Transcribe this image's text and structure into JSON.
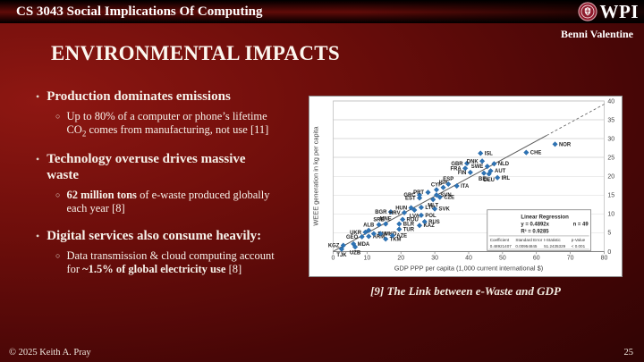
{
  "header": {
    "course_title": "CS 3043 Social Implications Of Computing",
    "logo": {
      "seal_icon": "wpi-seal",
      "text": "WPI"
    },
    "author": "Benni Valentine"
  },
  "slide": {
    "title": "ENVIRONMENTAL IMPACTS",
    "caption": "[9] The Link between e-Waste and GDP"
  },
  "bullets": [
    {
      "label": "Production dominates emissions",
      "subs": [
        {
          "segments": [
            {
              "text": "Up to 80% of a computer or phone’s lifetime CO"
            },
            {
              "text": "2",
              "sub": true
            },
            {
              "text": " comes from manufacturing, not use [11]"
            }
          ]
        }
      ]
    },
    {
      "label": "Technology overuse drives massive waste",
      "subs": [
        {
          "segments": [
            {
              "text": "62 million tons",
              "bold": true
            },
            {
              "text": " of e-waste produced globally each year [8]"
            }
          ]
        }
      ]
    },
    {
      "label": "Digital services also consume heavily:",
      "subs": [
        {
          "segments": [
            {
              "text": "Data transmission & cloud computing account for "
            },
            {
              "text": "~1.5% of global electricity use",
              "bold": true
            },
            {
              "text": " [8]"
            }
          ]
        }
      ]
    }
  ],
  "footer": {
    "copyright": "© 2025 Keith A. Pray",
    "page_number": "25"
  },
  "chart_data": {
    "type": "scatter",
    "xlabel": "GDP PPP per capita (1,000 current international $)",
    "ylabel": "WEEE generation in kg per capita",
    "xlim": [
      0,
      80
    ],
    "ylim": [
      0,
      40
    ],
    "xticks": [
      0,
      10,
      20,
      30,
      40,
      50,
      60,
      70,
      80
    ],
    "yticks": [
      0,
      5,
      10,
      15,
      20,
      25,
      30,
      35,
      40
    ],
    "ytick_side": "right",
    "grid": "horizontal",
    "marker_color": "#2E74B5",
    "trendline": {
      "slope": 0.4892,
      "solid_to_x": 63,
      "dashed_to_x": 80,
      "color": "#595959"
    },
    "regression_box": {
      "title": "Linear Regression",
      "equation": "y = 0.4892x",
      "n": "n = 49",
      "r_squared": "R² = 0.9285",
      "table": {
        "headers": [
          "Coefficient",
          "Standard Error",
          "t-Statistic",
          "p-Value"
        ],
        "values": [
          "0.48921407",
          "0.00954845",
          "51.2435329",
          "< 0.001"
        ]
      }
    },
    "points": [
      {
        "code": "TJK",
        "x": 2.5,
        "y": 0.6,
        "ls": "b"
      },
      {
        "code": "KGZ",
        "x": 3,
        "y": 1.6,
        "ls": "l"
      },
      {
        "code": "MDA",
        "x": 6,
        "y": 2.0,
        "ls": "r"
      },
      {
        "code": "UZB",
        "x": 6.5,
        "y": 1.2,
        "ls": "b"
      },
      {
        "code": "GEO",
        "x": 8.5,
        "y": 3.9,
        "ls": "l"
      },
      {
        "code": "UKR",
        "x": 9.5,
        "y": 5.1,
        "ls": "l"
      },
      {
        "code": "ARM",
        "x": 10.5,
        "y": 4.0,
        "ls": "r"
      },
      {
        "code": "ALB",
        "x": 10.5,
        "y": 5.6,
        "ls": "a"
      },
      {
        "code": "BIH",
        "x": 12,
        "y": 4.7,
        "ls": "r"
      },
      {
        "code": "MKD",
        "x": 14,
        "y": 4.7,
        "ls": "r"
      },
      {
        "code": "TKM",
        "x": 15.5,
        "y": 3.3,
        "ls": "r"
      },
      {
        "code": "AZE",
        "x": 17.5,
        "y": 4.2,
        "ls": "r"
      },
      {
        "code": "SRB",
        "x": 13.5,
        "y": 7.1,
        "ls": "a"
      },
      {
        "code": "MNE",
        "x": 15.5,
        "y": 7.3,
        "ls": "a"
      },
      {
        "code": "BGR",
        "x": 17,
        "y": 10.5,
        "ls": "l"
      },
      {
        "code": "HRV",
        "x": 21,
        "y": 10.3,
        "ls": "l"
      },
      {
        "code": "TUR",
        "x": 19.5,
        "y": 5.9,
        "ls": "r"
      },
      {
        "code": "BLR",
        "x": 19.5,
        "y": 7.3,
        "ls": "r"
      },
      {
        "code": "ROU",
        "x": 20.5,
        "y": 8.5,
        "ls": "r"
      },
      {
        "code": "KAZ",
        "x": 25.5,
        "y": 6.9,
        "ls": "r"
      },
      {
        "code": "RUS",
        "x": 27,
        "y": 7.9,
        "ls": "r"
      },
      {
        "code": "POL",
        "x": 26,
        "y": 9.6,
        "ls": "r"
      },
      {
        "code": "HUN",
        "x": 23,
        "y": 11.6,
        "ls": "l"
      },
      {
        "code": "LVA",
        "x": 24,
        "y": 11.0,
        "ls": "b"
      },
      {
        "code": "LTU",
        "x": 26,
        "y": 11.7,
        "ls": "r"
      },
      {
        "code": "SVK",
        "x": 30,
        "y": 11.3,
        "ls": "r"
      },
      {
        "code": "EST",
        "x": 25.5,
        "y": 14.2,
        "ls": "l"
      },
      {
        "code": "GRC",
        "x": 25.5,
        "y": 15.0,
        "ls": "l"
      },
      {
        "code": "PRT",
        "x": 28,
        "y": 15.7,
        "ls": "l"
      },
      {
        "code": "CYP",
        "x": 30.5,
        "y": 16.4,
        "ls": "a"
      },
      {
        "code": "MLT",
        "x": 29.5,
        "y": 13.8,
        "ls": "b"
      },
      {
        "code": "SVN",
        "x": 30.5,
        "y": 15.0,
        "ls": "r"
      },
      {
        "code": "CZE",
        "x": 31.5,
        "y": 14.4,
        "ls": "r"
      },
      {
        "code": "ISR",
        "x": 32.5,
        "y": 17.0,
        "ls": "a"
      },
      {
        "code": "ESP",
        "x": 34,
        "y": 17.9,
        "ls": "a"
      },
      {
        "code": "ITA",
        "x": 36.5,
        "y": 17.4,
        "ls": "r"
      },
      {
        "code": "FRA",
        "x": 39,
        "y": 22.1,
        "ls": "l"
      },
      {
        "code": "GBR",
        "x": 39.5,
        "y": 23.4,
        "ls": "l"
      },
      {
        "code": "FIN",
        "x": 40.5,
        "y": 21.0,
        "ls": "l"
      },
      {
        "code": "ISL",
        "x": 43.5,
        "y": 26.1,
        "ls": "r"
      },
      {
        "code": "DNK",
        "x": 44,
        "y": 24.0,
        "ls": "l"
      },
      {
        "code": "SWE",
        "x": 45.5,
        "y": 22.6,
        "ls": "l"
      },
      {
        "code": "BEL",
        "x": 44.5,
        "y": 20.8,
        "ls": "b"
      },
      {
        "code": "DEU",
        "x": 46,
        "y": 20.6,
        "ls": "b"
      },
      {
        "code": "AUT",
        "x": 46.5,
        "y": 21.4,
        "ls": "r"
      },
      {
        "code": "NLD",
        "x": 47.5,
        "y": 23.3,
        "ls": "r"
      },
      {
        "code": "IRL",
        "x": 48.5,
        "y": 19.6,
        "ls": "r"
      },
      {
        "code": "CHE",
        "x": 57,
        "y": 26.3,
        "ls": "r"
      },
      {
        "code": "NOR",
        "x": 65.5,
        "y": 28.5,
        "ls": "r"
      }
    ]
  }
}
